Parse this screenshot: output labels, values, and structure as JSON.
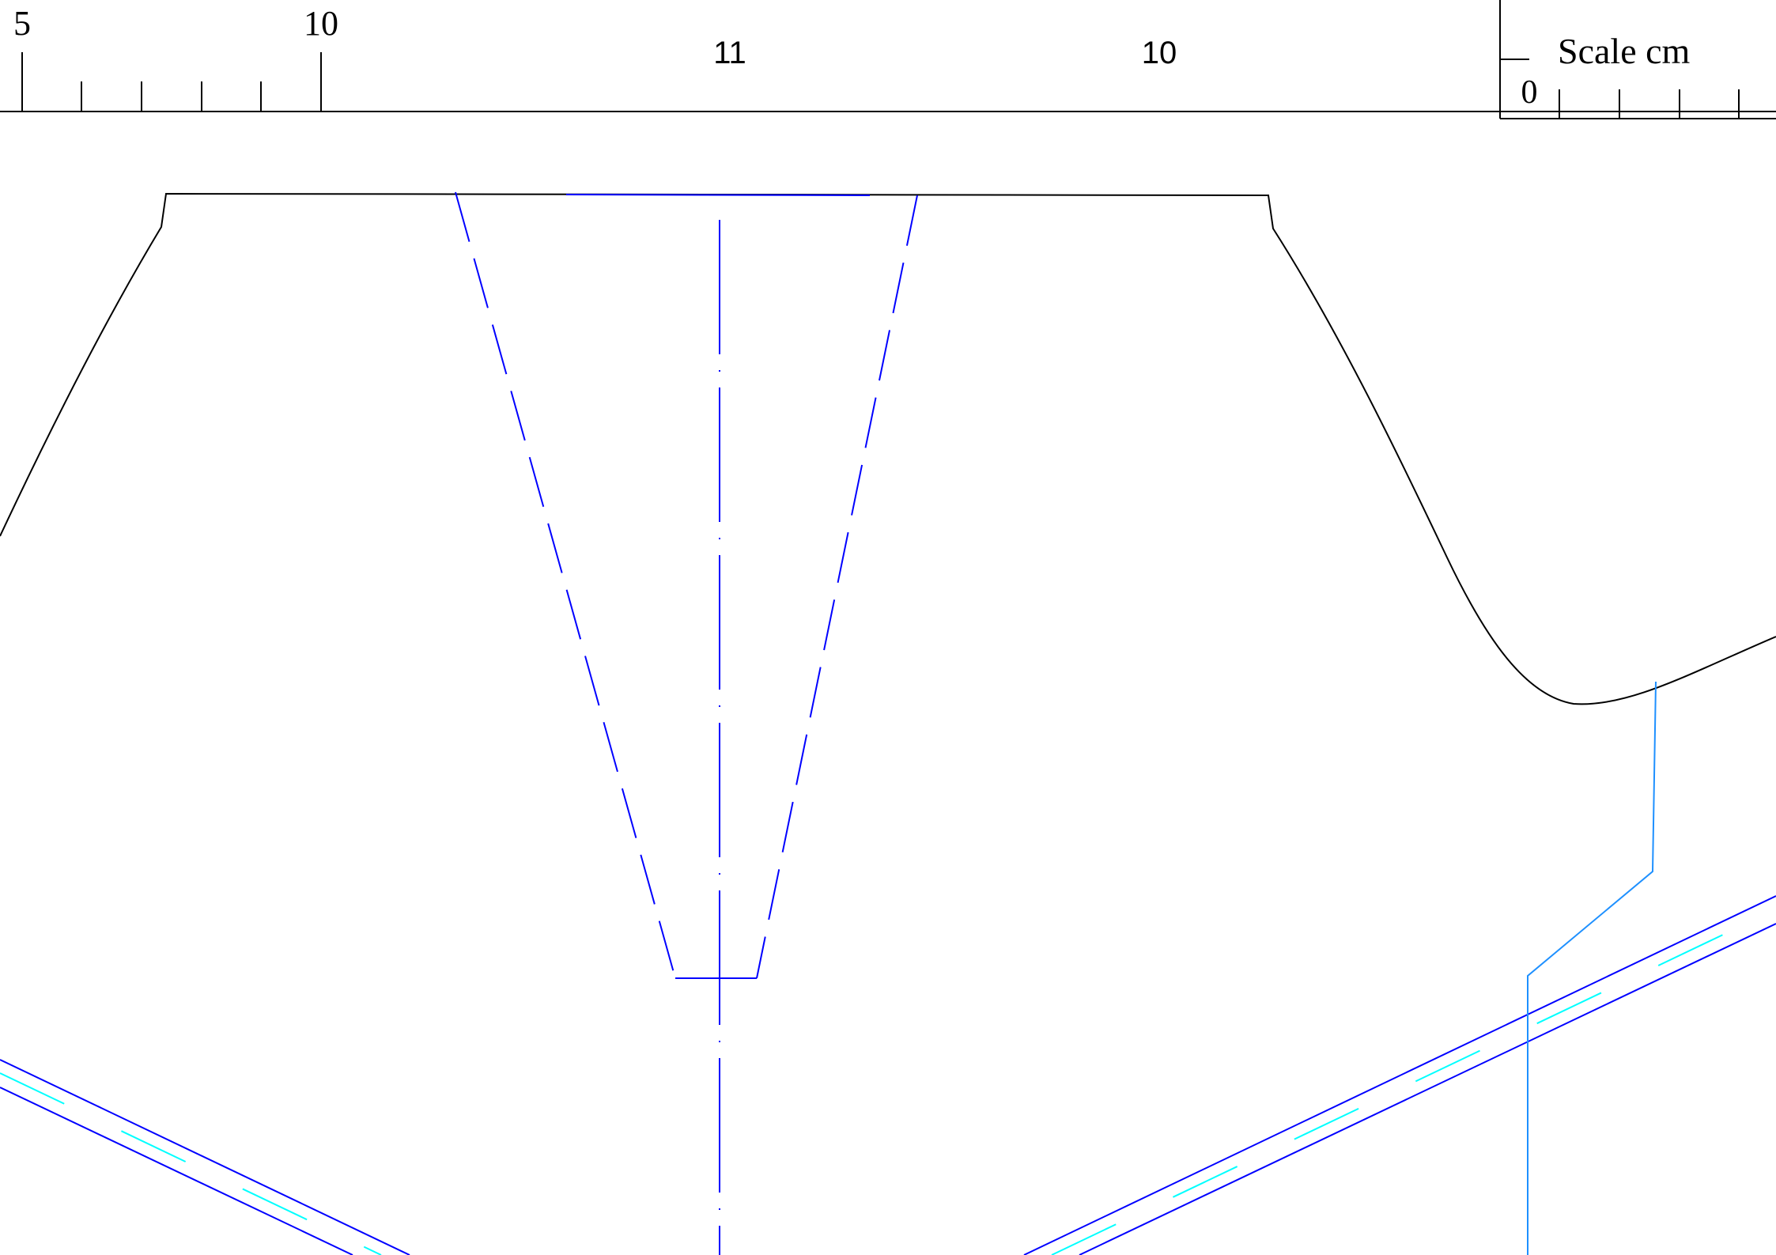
{
  "ruler_left": {
    "label_start": "5",
    "label_end": "10"
  },
  "dimensions": {
    "center": "11",
    "right": "10"
  },
  "scale_bar": {
    "title": "Scale cm",
    "zero": "0"
  },
  "colors": {
    "outline": "#000000",
    "hidden_line": "#0000ff",
    "centerline": "#0000ff",
    "section_line": "#0000ff",
    "aux_line": "#00ffff",
    "leader_line": "#1e90ff",
    "background": "#ffffff"
  }
}
